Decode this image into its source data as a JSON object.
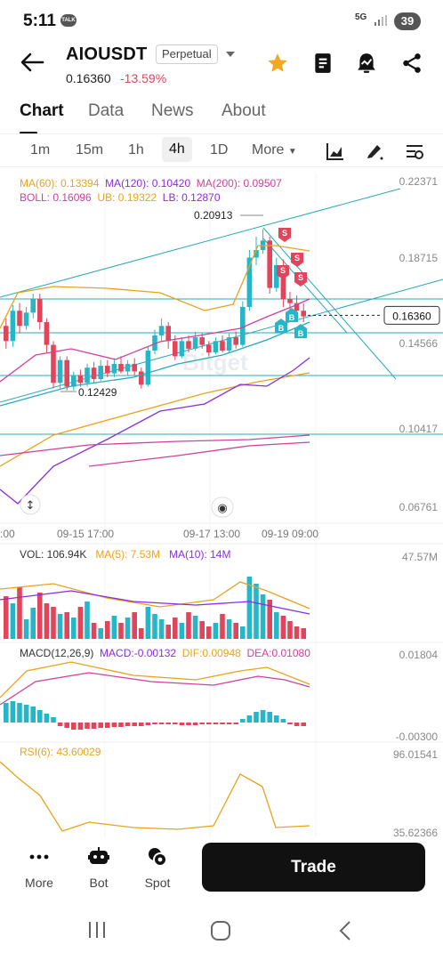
{
  "status": {
    "time": "5:11",
    "talk": "TALK",
    "network": "5G",
    "battery": "39"
  },
  "header": {
    "pair": "AIOUSDT",
    "contract_type": "Perpetual",
    "price": "0.16360",
    "change": "-13.59%"
  },
  "tabs": [
    "Chart",
    "Data",
    "News",
    "About"
  ],
  "active_tab": "Chart",
  "intervals": {
    "items": [
      "1m",
      "15m",
      "1h",
      "4h",
      "1D"
    ],
    "selected": "4h",
    "more": "More"
  },
  "legend": {
    "ma": {
      "ma60": "MA(60): 0.13394",
      "ma120": "MA(120): 0.10420",
      "ma200": "MA(200): 0.09507"
    },
    "boll": {
      "boll": "BOLL: 0.16096",
      "ub": "UB: 0.19322",
      "lb": "LB: 0.12870"
    }
  },
  "price_axis": [
    "0.22371",
    "0.18715",
    "0.14566",
    "0.10417",
    "0.06761"
  ],
  "current_price_tag": "0.16360",
  "annotations": {
    "high": "0.20913",
    "low": "0.12429"
  },
  "time_axis": [
    ":00",
    "09-15 17:00",
    "09-17 13:00",
    "09-19 09:00"
  ],
  "watermark": "Bitget",
  "volume": {
    "vol": "VOL: 106.94K",
    "ma5": "MA(5): 7.53M",
    "ma10": "MA(10): 14M",
    "axis_top": "47.57M"
  },
  "macd": {
    "label": "MACD(12,26,9)",
    "macd": "MACD:-0.00132",
    "dif": "DIF:0.00948",
    "dea": "DEA:0.01080",
    "axis_top": "0.01804",
    "axis_bottom": "-0.00300"
  },
  "rsi": {
    "label": "RSI(6): 43.60029",
    "axis_top": "96.01541",
    "axis_bottom": "35.62366"
  },
  "markers": {
    "sell": "S",
    "buy": "B"
  },
  "bottom": {
    "more": "More",
    "bot": "Bot",
    "spot": "Spot",
    "trade": "Trade"
  },
  "colors": {
    "up": "#27b5c8",
    "down": "#e0455c",
    "ma60": "#e8a31c",
    "ma120": "#8a2be2",
    "ma200": "#d1409e",
    "boll_mid": "#d1409e",
    "accent": "#f5a623"
  }
}
